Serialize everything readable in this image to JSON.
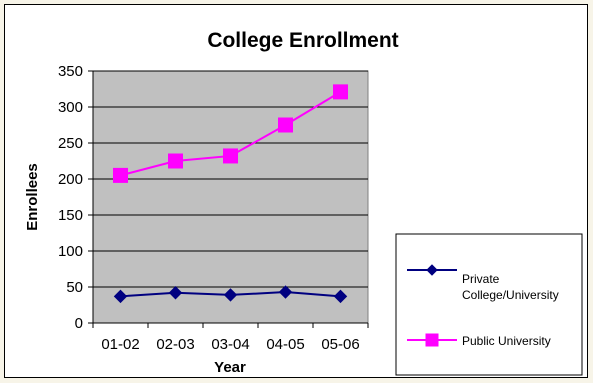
{
  "chart_data": {
    "type": "line",
    "title": "College Enrollment",
    "xlabel": "Year",
    "ylabel": "Enrollees",
    "categories": [
      "01-02",
      "02-03",
      "03-04",
      "04-05",
      "05-06"
    ],
    "ylim": [
      0,
      350
    ],
    "yticks": [
      0,
      50,
      100,
      150,
      200,
      250,
      300,
      350
    ],
    "grid": true,
    "plot_background": "#c0c0c0",
    "legend_position": "right",
    "series": [
      {
        "name_lines": [
          "Private",
          "College/University"
        ],
        "values": [
          37,
          42,
          39,
          43,
          37
        ],
        "color": "#000080",
        "marker": "diamond"
      },
      {
        "name_lines": [
          "Public University"
        ],
        "values": [
          205,
          225,
          232,
          275,
          321
        ],
        "color": "#ff00ff",
        "marker": "square"
      }
    ]
  }
}
